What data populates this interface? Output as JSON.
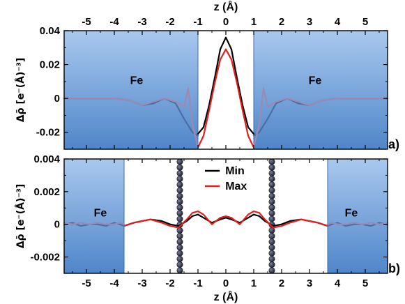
{
  "chart_data": [
    {
      "type": "line",
      "panel_label": "a)",
      "xlabel": "z (Å)",
      "ylabel": "Δρ̄ [e⁻(Å)⁻³]",
      "xlim": [
        -5.8,
        5.8
      ],
      "ylim": [
        -0.03,
        0.04
      ],
      "x_ticks": [
        -5,
        -4,
        -3,
        -2,
        -1,
        0,
        1,
        2,
        3,
        4,
        5
      ],
      "y_ticks": [
        -0.02,
        0,
        0.02,
        0.04
      ],
      "y_tick_labels": [
        "-0.02",
        "0",
        "0.02",
        "0.04"
      ],
      "shaded_regions": [
        {
          "label": "Fe",
          "x": [
            -5.8,
            -1.0
          ]
        },
        {
          "label": "Fe",
          "x": [
            1.0,
            5.8
          ]
        }
      ],
      "series": [
        {
          "color": "#000000",
          "x": [
            -1.0,
            -0.8,
            -0.6,
            -0.4,
            -0.2,
            0,
            0.2,
            0.4,
            0.6,
            0.8,
            1.0
          ],
          "y": [
            -0.021,
            -0.017,
            -0.004,
            0.012,
            0.029,
            0.036,
            0.029,
            0.012,
            -0.004,
            -0.017,
            -0.021
          ]
        },
        {
          "color": "#e02020",
          "x": [
            -1.0,
            -0.8,
            -0.6,
            -0.4,
            -0.2,
            0,
            0.2,
            0.4,
            0.6,
            0.8,
            1.0
          ],
          "y": [
            -0.029,
            -0.022,
            -0.007,
            0.009,
            0.023,
            0.029,
            0.023,
            0.009,
            -0.007,
            -0.022,
            -0.029
          ]
        },
        {
          "color": "#4a6fa5",
          "x": [
            -5.8,
            -4.0,
            -3.5,
            -3.0,
            -2.6,
            -2.2,
            -1.8,
            -1.5,
            -1.2,
            -1.0
          ],
          "y": [
            0.0,
            0.0,
            -0.001,
            -0.004,
            -0.003,
            0.0,
            -0.003,
            -0.012,
            -0.02,
            -0.022
          ]
        },
        {
          "color": "#9c8ab0",
          "x": [
            -5.8,
            -4.0,
            -3.5,
            -3.0,
            -2.6,
            -2.2,
            -1.8,
            -1.5,
            -1.35,
            -1.2,
            -1.0
          ],
          "y": [
            0.0,
            0.0,
            -0.001,
            -0.004,
            -0.002,
            0.0,
            -0.002,
            -0.005,
            0.006,
            -0.015,
            -0.029
          ]
        },
        {
          "color": "#4a6fa5",
          "x": [
            1.0,
            1.2,
            1.5,
            1.8,
            2.2,
            2.6,
            3.0,
            3.5,
            4.0,
            5.8
          ],
          "y": [
            -0.022,
            -0.02,
            -0.012,
            -0.003,
            0.0,
            -0.003,
            -0.004,
            -0.001,
            0.0,
            0.0
          ]
        },
        {
          "color": "#9c8ab0",
          "x": [
            1.0,
            1.2,
            1.35,
            1.5,
            1.8,
            2.2,
            2.6,
            3.0,
            3.5,
            4.0,
            5.8
          ],
          "y": [
            -0.029,
            -0.015,
            0.006,
            -0.005,
            -0.002,
            0.0,
            -0.002,
            -0.004,
            -0.001,
            0.0,
            0.0
          ]
        }
      ]
    },
    {
      "type": "line",
      "panel_label": "b)",
      "xlabel": "z (Å)",
      "ylabel": "Δρ̄ [e⁻(Å)⁻³]",
      "xlim": [
        -5.8,
        5.8
      ],
      "ylim": [
        -0.003,
        0.004
      ],
      "x_ticks": [
        -5,
        -4,
        -3,
        -2,
        -1,
        0,
        1,
        2,
        3,
        4,
        5
      ],
      "y_ticks": [
        -0.002,
        0,
        0.002,
        0.004
      ],
      "y_tick_labels": [
        "-0.002",
        "0",
        "0.002",
        "0.004"
      ],
      "shaded_regions": [
        {
          "label": "Fe",
          "x": [
            -5.8,
            -3.65
          ]
        },
        {
          "label": "Fe",
          "x": [
            3.65,
            5.8
          ]
        }
      ],
      "atom_chains_x": [
        -1.65,
        1.65
      ],
      "legend": [
        {
          "label": "Min",
          "color": "#000000"
        },
        {
          "label": "Max",
          "color": "#e02020"
        }
      ],
      "legend_position": "top-center",
      "series": [
        {
          "name": "Min",
          "color": "#000000",
          "x": [
            -3.65,
            -3.3,
            -3.0,
            -2.7,
            -2.3,
            -2.0,
            -1.7,
            -1.4,
            -1.2,
            -1.0,
            -0.8,
            -0.5,
            -0.2,
            0,
            0.2,
            0.5,
            0.8,
            1.0,
            1.2,
            1.4,
            1.7,
            2.0,
            2.3,
            2.7,
            3.0,
            3.3,
            3.65
          ],
          "y": [
            -0.0001,
            0.0001,
            0.0002,
            0.0003,
            0.0002,
            0.0,
            -0.0001,
            0.0002,
            0.0005,
            0.0006,
            0.0004,
            0.0001,
            0.0003,
            0.0004,
            0.0003,
            0.0001,
            0.0004,
            0.0006,
            0.0005,
            0.0002,
            -0.0001,
            0.0,
            0.0002,
            0.0003,
            0.0002,
            0.0001,
            -0.0001
          ]
        },
        {
          "name": "Max",
          "color": "#e02020",
          "x": [
            -3.65,
            -3.3,
            -3.0,
            -2.7,
            -2.3,
            -2.0,
            -1.7,
            -1.4,
            -1.2,
            -1.0,
            -0.8,
            -0.5,
            -0.2,
            0,
            0.2,
            0.5,
            0.8,
            1.0,
            1.2,
            1.4,
            1.7,
            2.0,
            2.3,
            2.7,
            3.0,
            3.3,
            3.65
          ],
          "y": [
            -0.0001,
            0.0001,
            0.0002,
            0.0003,
            0.0001,
            -0.0001,
            -0.0002,
            0.0003,
            0.0007,
            0.0008,
            0.0006,
            0.0,
            0.0004,
            0.0005,
            0.0004,
            0.0,
            0.0006,
            0.0008,
            0.0007,
            0.0003,
            -0.0002,
            -0.0001,
            0.0001,
            0.0003,
            0.0002,
            0.0001,
            -0.0001
          ]
        },
        {
          "color": "#4a6fa5",
          "x": [
            -5.8,
            -5.5,
            -5.2,
            -4.9,
            -4.6,
            -4.3,
            -4.0,
            -3.8,
            -3.65
          ],
          "y": [
            0.0,
            0.0001,
            -0.0001,
            0.0,
            0.0,
            -0.0001,
            0.0001,
            0.0,
            -0.0001
          ]
        },
        {
          "color": "#9c8ab0",
          "x": [
            -5.8,
            -5.5,
            -5.2,
            -4.9,
            -4.6,
            -4.3,
            -4.0,
            -3.8,
            -3.65
          ],
          "y": [
            0.0001,
            0.0,
            0.0001,
            0.0,
            0.0001,
            0.0,
            0.0,
            0.0001,
            0.0
          ]
        },
        {
          "color": "#4a6fa5",
          "x": [
            3.65,
            3.8,
            4.0,
            4.3,
            4.6,
            4.9,
            5.2,
            5.5,
            5.8
          ],
          "y": [
            -0.0001,
            0.0,
            0.0001,
            -0.0001,
            0.0,
            0.0,
            -0.0001,
            0.0001,
            0.0
          ]
        },
        {
          "color": "#9c8ab0",
          "x": [
            3.65,
            3.8,
            4.0,
            4.3,
            4.6,
            4.9,
            5.2,
            5.5,
            5.8
          ],
          "y": [
            0.0,
            0.0001,
            0.0,
            0.0,
            0.0001,
            0.0,
            0.0001,
            0.0,
            0.0001
          ]
        }
      ]
    }
  ]
}
